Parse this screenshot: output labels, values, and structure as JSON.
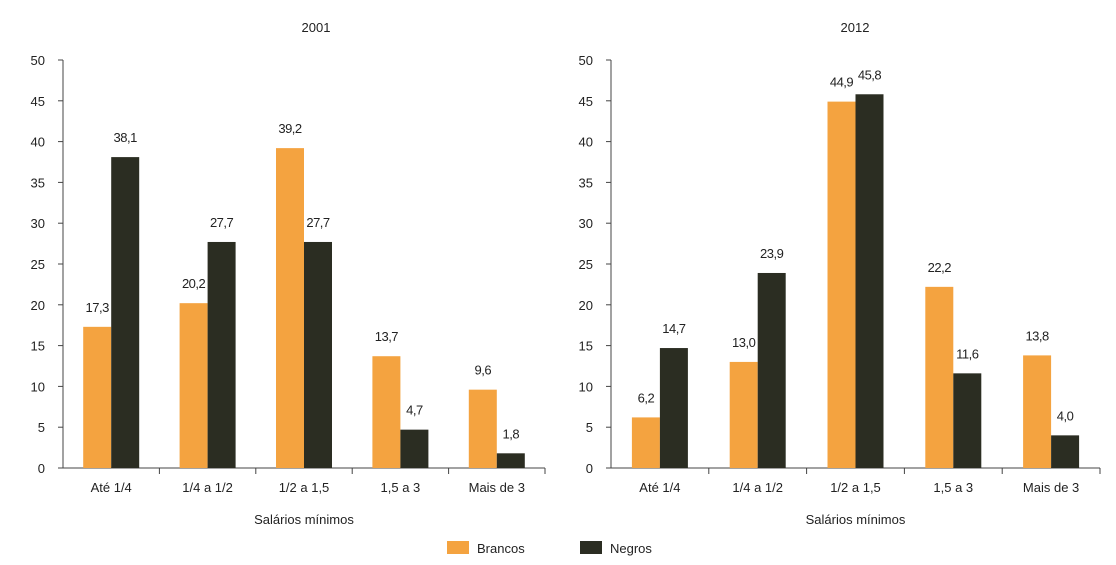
{
  "chart_data": [
    {
      "type": "bar",
      "title": "2001",
      "xlabel": "Salários mínimos",
      "ylabel": "",
      "ylim": [
        0,
        50
      ],
      "yticks": [
        0,
        5,
        10,
        15,
        20,
        25,
        30,
        35,
        40,
        45,
        50
      ],
      "grid": false,
      "categories": [
        "Até 1/4",
        "1/4 a 1/2",
        "1/2 a 1,5",
        "1,5 a 3",
        "Mais de 3"
      ],
      "series": [
        {
          "name": "Brancos",
          "values": [
            17.3,
            20.2,
            39.2,
            13.7,
            9.6
          ],
          "labels": [
            "17,3",
            "20,2",
            "39,2",
            "13,7",
            "9,6"
          ]
        },
        {
          "name": "Negros",
          "values": [
            38.1,
            27.7,
            27.7,
            4.7,
            1.8
          ],
          "labels": [
            "38,1",
            "27,7",
            "27,7",
            "4,7",
            "1,8"
          ]
        }
      ]
    },
    {
      "type": "bar",
      "title": "2012",
      "xlabel": "Salários mínimos",
      "ylabel": "",
      "ylim": [
        0,
        50
      ],
      "yticks": [
        0,
        5,
        10,
        15,
        20,
        25,
        30,
        35,
        40,
        45,
        50
      ],
      "grid": false,
      "categories": [
        "Até 1/4",
        "1/4 a 1/2",
        "1/2 a 1,5",
        "1,5 a 3",
        "Mais de 3"
      ],
      "series": [
        {
          "name": "Brancos",
          "values": [
            6.2,
            13.0,
            44.9,
            22.2,
            13.8
          ],
          "labels": [
            "6,2",
            "13,0",
            "44,9",
            "22,2",
            "13,8"
          ]
        },
        {
          "name": "Negros",
          "values": [
            14.7,
            23.9,
            45.8,
            11.6,
            4.0
          ],
          "labels": [
            "14,7",
            "23,9",
            "45,8",
            "11,6",
            "4,0"
          ]
        }
      ]
    }
  ],
  "legend": {
    "placement": "bottom-center",
    "items": [
      {
        "label": "Brancos",
        "color": "#F4A340"
      },
      {
        "label": "Negros",
        "color": "#2B2D22"
      }
    ]
  },
  "colors": {
    "brancos": "#F4A340",
    "negros": "#2B2D22"
  }
}
